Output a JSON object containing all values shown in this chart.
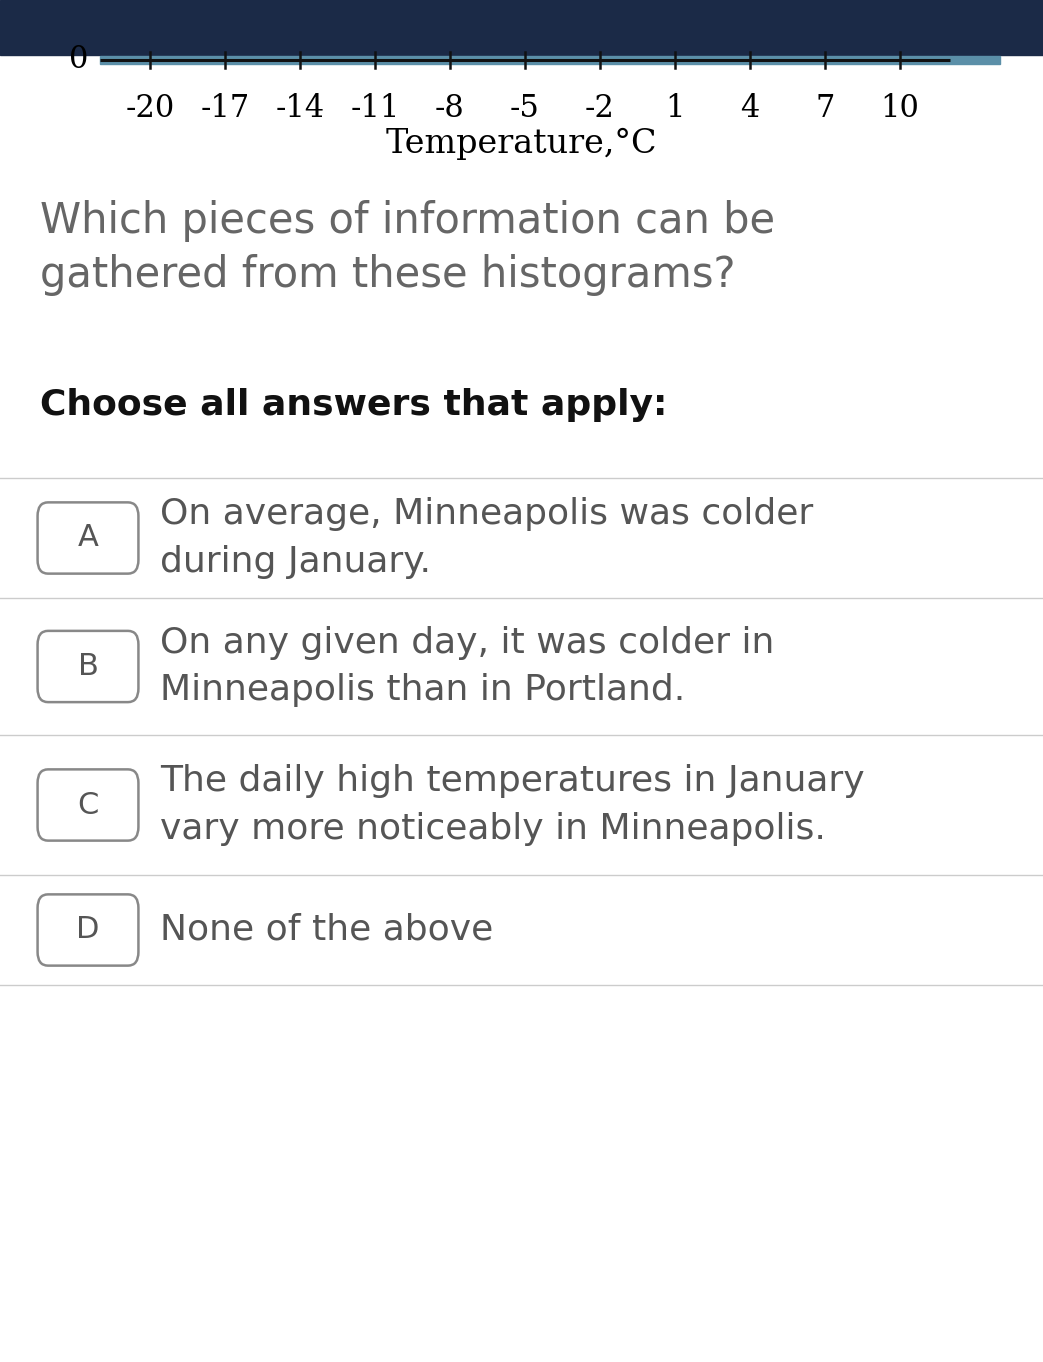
{
  "header_bg_color": "#1b2a47",
  "body_bg_color": "#ffffff",
  "axis_tick_labels": [
    "-20",
    "-17",
    "-14",
    "-11",
    "-8",
    "-5",
    "-2",
    "1",
    "4",
    "7",
    "10"
  ],
  "axis_tick_values": [
    -20,
    -17,
    -14,
    -11,
    -8,
    -5,
    -2,
    1,
    4,
    7,
    10
  ],
  "axis_xlabel": "Temperature,°C",
  "axis_y_label": "0",
  "axis_bar_color": "#5b8fa8",
  "axis_line_color": "#111111",
  "question_text": "Which pieces of information can be\ngathered from these histograms?",
  "instruction_text": "Choose all answers that apply:",
  "question_fontsize": 30,
  "instruction_fontsize": 26,
  "question_color": "#666666",
  "instruction_color": "#111111",
  "options": [
    {
      "letter": "A",
      "text": "On average, Minneapolis was colder\nduring January."
    },
    {
      "letter": "B",
      "text": "On any given day, it was colder in\nMinneapolis than in Portland."
    },
    {
      "letter": "C",
      "text": "The daily high temperatures in January\nvary more noticeably in Minneapolis."
    },
    {
      "letter": "D",
      "text": "None of the above"
    }
  ],
  "option_fontsize": 26,
  "option_color": "#555555",
  "letter_box_border": "#888888",
  "divider_color": "#cccccc",
  "letter_fontsize": 22,
  "tick_label_fontsize": 22,
  "xlabel_fontsize": 24
}
